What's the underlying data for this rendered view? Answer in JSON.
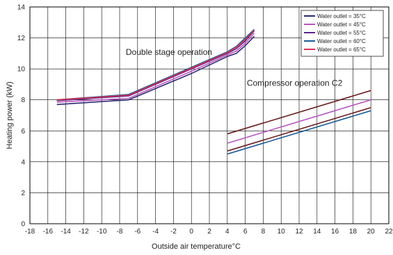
{
  "chart_data": {
    "type": "line",
    "xlabel": "Outside air temperature°C",
    "ylabel": "Heating power (kW)",
    "xlim": [
      -18,
      22
    ],
    "ylim": [
      0,
      14
    ],
    "xticks": [
      "-18",
      "-16",
      "-14",
      "-12",
      "-10",
      "-8",
      "-6",
      "-4",
      "-2",
      "0",
      "2",
      "4",
      "6",
      "8",
      "10",
      "12",
      "14",
      "16",
      "18",
      "20",
      "22"
    ],
    "yticks": [
      "0",
      "2",
      "4",
      "6",
      "8",
      "10",
      "12",
      "14"
    ],
    "grid": true,
    "legend_position": "top-right",
    "annotations": [
      {
        "text": "Double stage operation",
        "x": -2.5,
        "y": 10.9
      },
      {
        "text": "Compressor operation C2",
        "x": 11.5,
        "y": 8.9
      }
    ],
    "series": [
      {
        "name": "Water  outlet = 35°C",
        "color": "#2a2a6e",
        "group": "double",
        "x": [
          -15,
          -7,
          0,
          4,
          5,
          6,
          7
        ],
        "y": [
          7.7,
          8.0,
          9.7,
          10.8,
          11.0,
          11.5,
          12.1
        ]
      },
      {
        "name": "Water  outlet = 45°C",
        "color": "#b855c0",
        "group": "double",
        "x": [
          -15,
          -7,
          0,
          4,
          5,
          6,
          7
        ],
        "y": [
          7.85,
          8.1,
          9.85,
          10.9,
          11.15,
          11.65,
          12.3
        ]
      },
      {
        "name": "Water  outlet = 55°C",
        "color": "#5b2586",
        "group": "double",
        "x": [
          -15,
          -7,
          0,
          4,
          5,
          6,
          7
        ],
        "y": [
          7.95,
          8.25,
          10.0,
          11.0,
          11.3,
          11.8,
          12.45
        ]
      },
      {
        "name": "Water  outlet = 60°C",
        "color": "#1a5c9a",
        "group": "double",
        "x": [
          -15,
          -7,
          0,
          4,
          5,
          6,
          7
        ],
        "y": [
          8.0,
          8.35,
          10.1,
          11.1,
          11.45,
          12.0,
          12.55
        ]
      },
      {
        "name": "Water  outlet = 65°C",
        "color": "#dc3050",
        "group": "double",
        "x": [
          -15,
          -7,
          0,
          4,
          5,
          6,
          7
        ],
        "y": [
          8.0,
          8.3,
          10.05,
          11.05,
          11.4,
          11.9,
          12.5
        ]
      },
      {
        "name": "",
        "color": "#6b1d1d",
        "group": "c2",
        "x": [
          4,
          20
        ],
        "y": [
          5.8,
          8.6
        ]
      },
      {
        "name": "",
        "color": "#b855c0",
        "group": "c2",
        "x": [
          4,
          20
        ],
        "y": [
          5.2,
          8.0
        ]
      },
      {
        "name": "",
        "color": "#6b1d1d",
        "group": "c2",
        "x": [
          4,
          20
        ],
        "y": [
          4.7,
          7.5
        ]
      },
      {
        "name": "",
        "color": "#1a5c9a",
        "group": "c2",
        "x": [
          4,
          20
        ],
        "y": [
          4.5,
          7.3
        ]
      }
    ],
    "legend": [
      {
        "label": "Water  outlet = 35°C",
        "color": "#2a2a6e"
      },
      {
        "label": "Water  outlet = 45°C",
        "color": "#b855c0"
      },
      {
        "label": "Water  outlet = 55°C",
        "color": "#5b2586"
      },
      {
        "label": "Water  outlet = 60°C",
        "color": "#1a5c9a"
      },
      {
        "label": "Water  outlet = 65°C",
        "color": "#dc3050"
      }
    ]
  }
}
